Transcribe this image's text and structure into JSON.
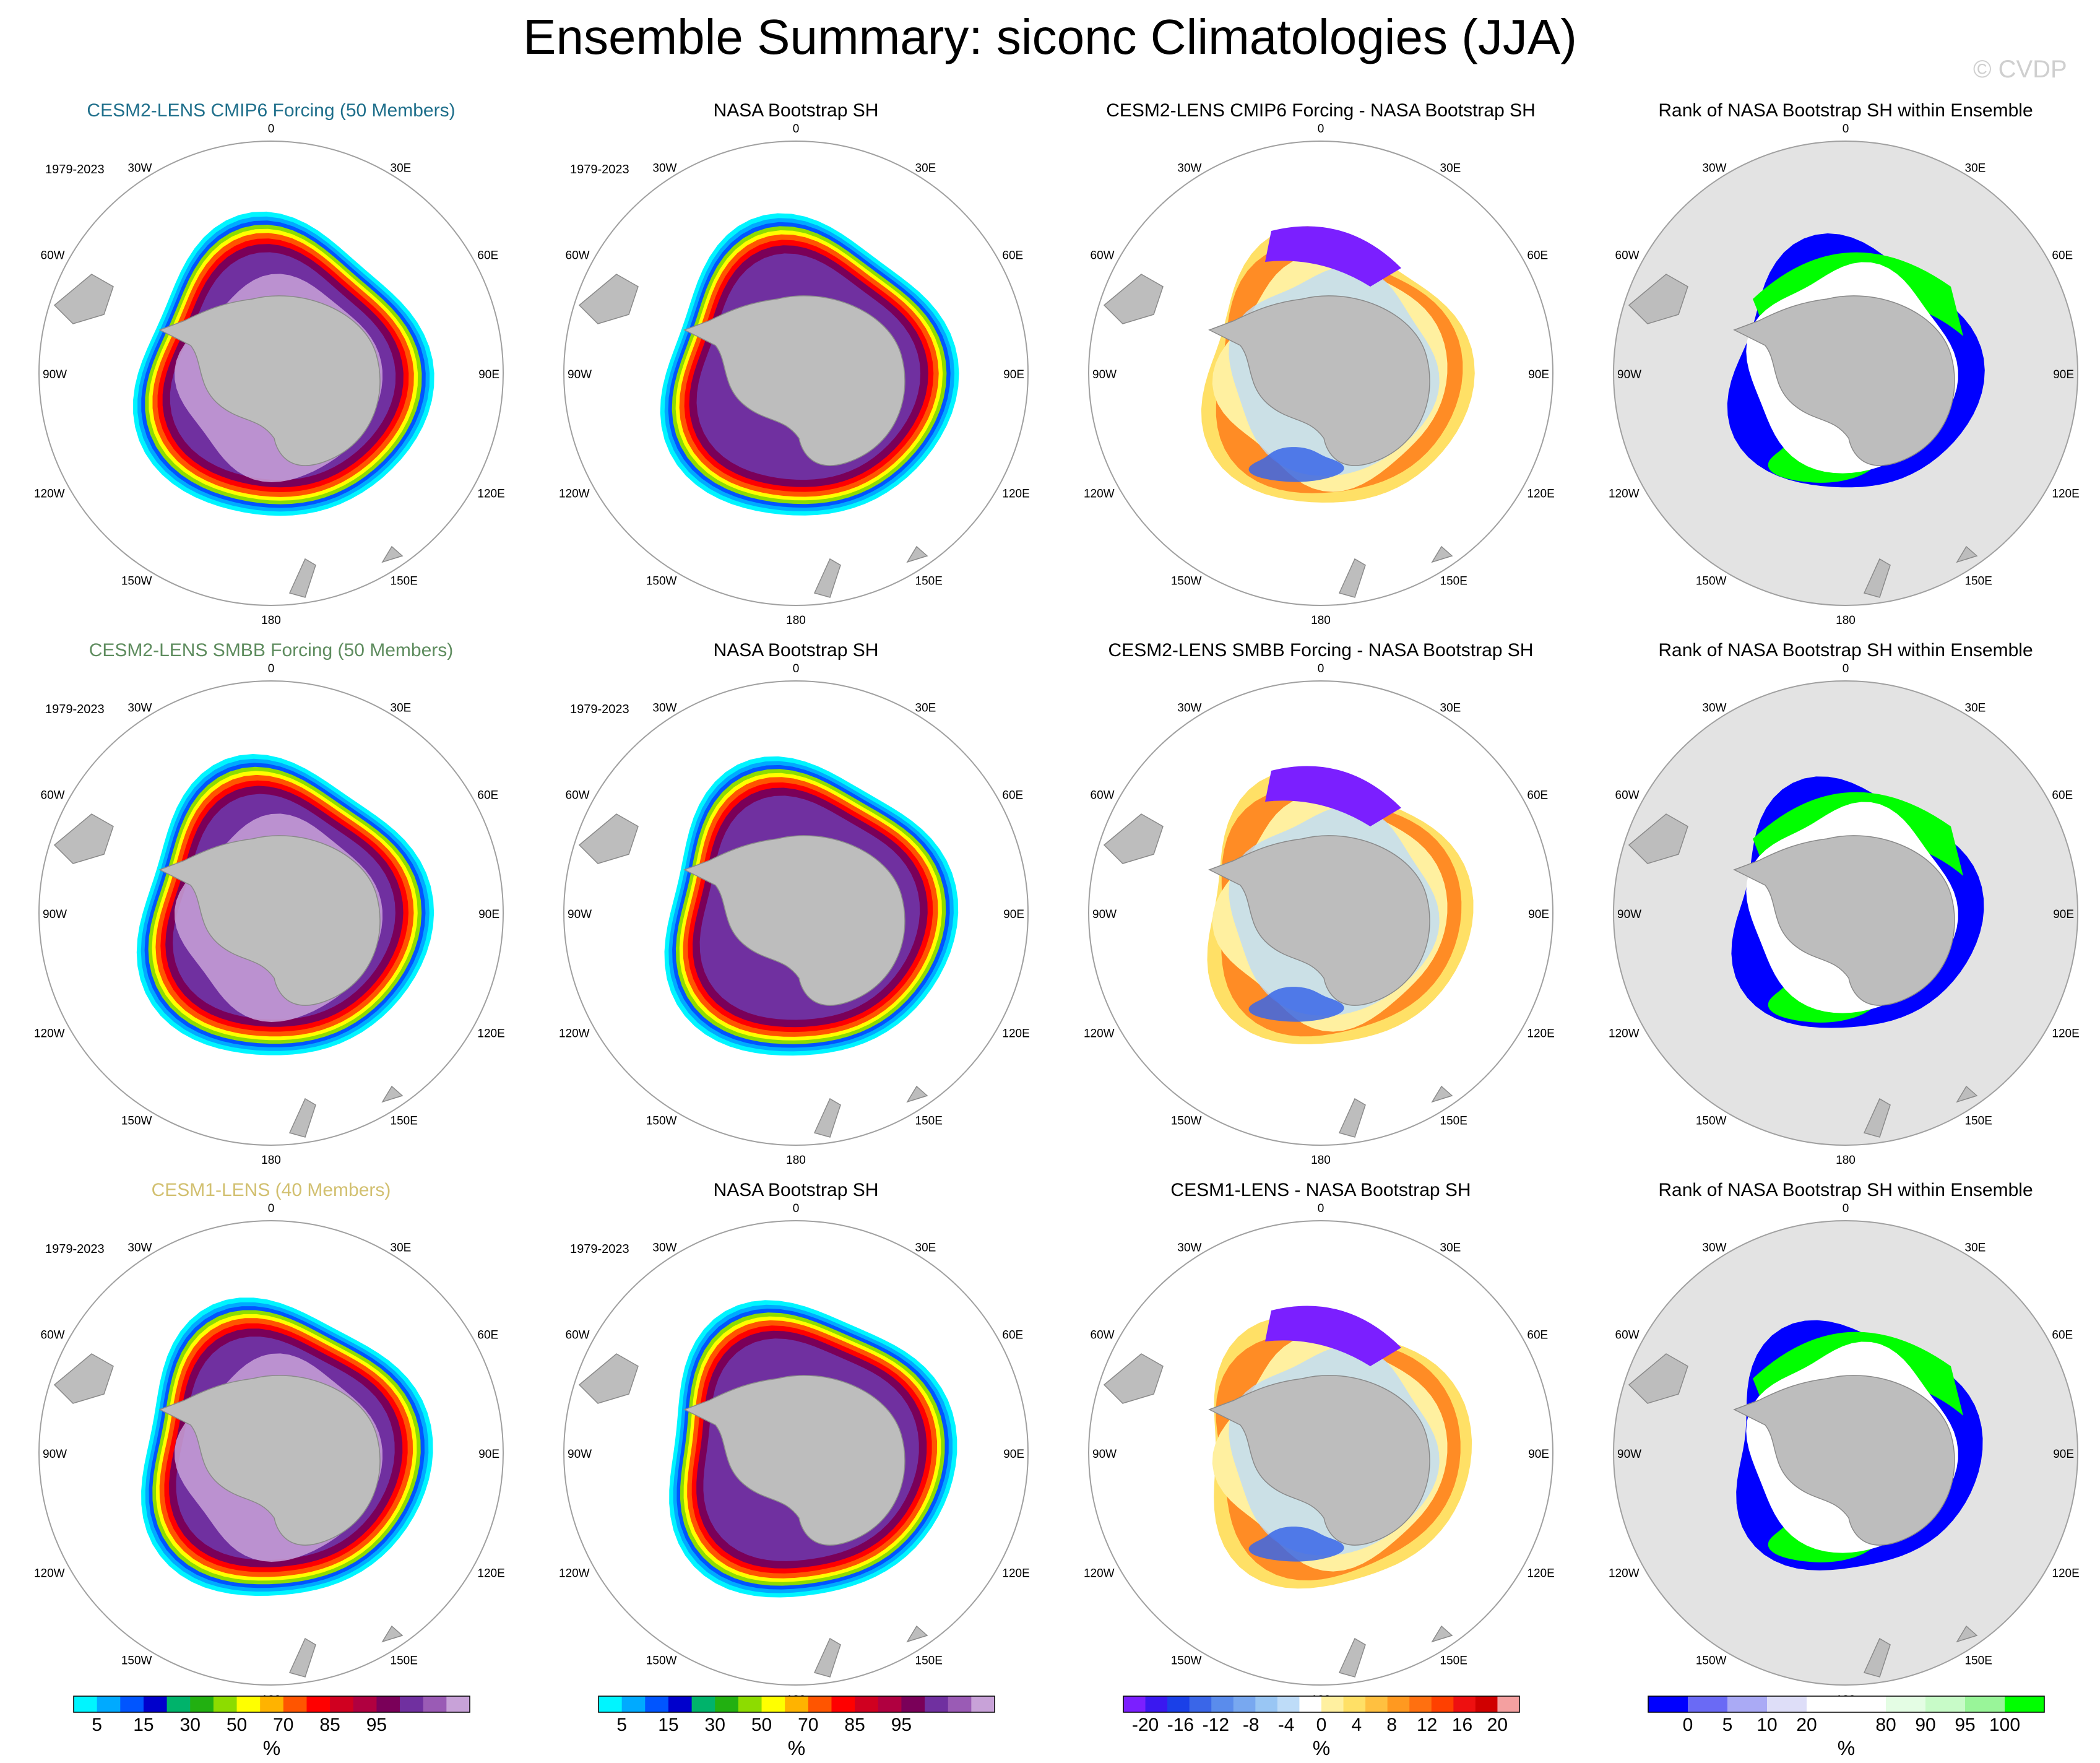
{
  "title": "Ensemble Summary: siconc Climatologies (JJA)",
  "watermark": "© CVDP",
  "period": "1979-2023",
  "lon_labels": [
    "0",
    "30E",
    "60E",
    "90E",
    "120E",
    "150E",
    "180",
    "150W",
    "120W",
    "90W",
    "60W",
    "30W"
  ],
  "rows": [
    {
      "titles": [
        "CESM2-LENS CMIP6 Forcing (50 Members)",
        "NASA Bootstrap SH",
        "CESM2-LENS CMIP6 Forcing - NASA Bootstrap SH",
        "Rank of NASA Bootstrap SH within Ensemble"
      ],
      "title_color": "#1f6f8b",
      "show_period": [
        true,
        true,
        false,
        false
      ]
    },
    {
      "titles": [
        "CESM2-LENS SMBB Forcing (50 Members)",
        "NASA Bootstrap SH",
        "CESM2-LENS SMBB Forcing - NASA Bootstrap SH",
        "Rank of NASA Bootstrap SH within Ensemble"
      ],
      "title_color": "#5e8c5e",
      "show_period": [
        true,
        true,
        false,
        false
      ]
    },
    {
      "titles": [
        "CESM1-LENS (40 Members)",
        "NASA Bootstrap SH",
        "CESM1-LENS - NASA Bootstrap SH",
        "Rank of NASA Bootstrap SH within Ensemble"
      ],
      "title_color": "#d2c070",
      "show_period": [
        true,
        true,
        false,
        false
      ]
    }
  ],
  "colorbars": [
    {
      "colors": [
        "#00f5ff",
        "#00aaff",
        "#0055ff",
        "#0000cc",
        "#00b36b",
        "#22b011",
        "#8ddc00",
        "#ffff00",
        "#ffb300",
        "#ff5500",
        "#ff0000",
        "#d00020",
        "#b00040",
        "#7a0059",
        "#7030a0",
        "#9a5bb5",
        "#c8a2d8"
      ],
      "labels": [
        "5",
        "15",
        "30",
        "50",
        "70",
        "85",
        "95"
      ],
      "unit": "%"
    },
    {
      "colors": [
        "#00f5ff",
        "#00aaff",
        "#0055ff",
        "#0000cc",
        "#00b36b",
        "#22b011",
        "#8ddc00",
        "#ffff00",
        "#ffb300",
        "#ff5500",
        "#ff0000",
        "#d00020",
        "#b00040",
        "#7a0059",
        "#7030a0",
        "#9a5bb5",
        "#c8a2d8"
      ],
      "labels": [
        "5",
        "15",
        "30",
        "50",
        "70",
        "85",
        "95"
      ],
      "unit": "%"
    },
    {
      "colors": [
        "#7b1fff",
        "#3a18f0",
        "#1a40e8",
        "#3a66e8",
        "#5a8cec",
        "#78a8f0",
        "#99c6f4",
        "#bedcf8",
        "#ffffff",
        "#fff0a0",
        "#ffe066",
        "#ffc040",
        "#ff9920",
        "#ff7010",
        "#ff4000",
        "#ee1010",
        "#d00000",
        "#f4a0a0"
      ],
      "labels": [
        "-20",
        "-16",
        "-12",
        "-8",
        "-4",
        "0",
        "4",
        "8",
        "12",
        "16",
        "20"
      ],
      "unit": "%"
    },
    {
      "colors": [
        "#0000ff",
        "#6a6af5",
        "#aaaaf5",
        "#dedef8",
        "#ffffff",
        "#ffffff",
        "#e4fde4",
        "#c8fbc8",
        "#99f599",
        "#00ff00"
      ],
      "labels": [
        "0",
        "5",
        "10",
        "20",
        "80",
        "90",
        "95",
        "100"
      ],
      "unit": "%"
    }
  ],
  "colors": {
    "land": "#bdbdbd",
    "ocean_rank": "#e3e3e3",
    "outline": "#a0a0a0"
  }
}
